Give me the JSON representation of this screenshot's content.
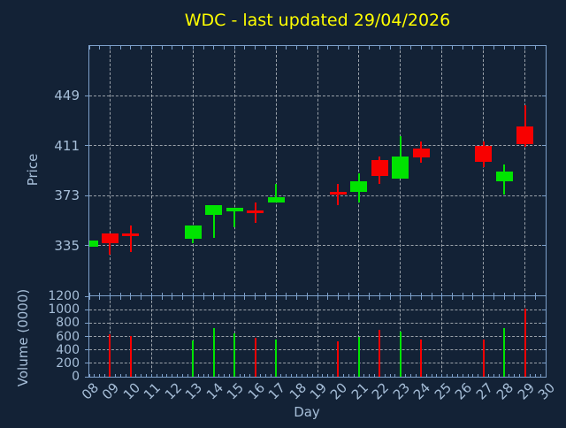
{
  "window": {
    "background": "#132236"
  },
  "colors": {
    "background": "#132236",
    "axis": "#7da0ca",
    "tick_label": "#a6bed8",
    "grid": "#b2b8be",
    "title": "#ffff00",
    "up": "#00e400",
    "down": "#f80000"
  },
  "chart_data": {
    "type": "candlestick",
    "title": "WDC - last updated 29/04/2026",
    "xlabel": "Day",
    "grid": true,
    "x": {
      "min": 8,
      "max": 30,
      "tick_labels": [
        "08",
        "09",
        "10",
        "11",
        "12",
        "13",
        "14",
        "15",
        "16",
        "17",
        "18",
        "19",
        "20",
        "21",
        "22",
        "23",
        "24",
        "25",
        "26",
        "27",
        "28",
        "29",
        "30"
      ],
      "grid_days": [
        9,
        11,
        13,
        15,
        17,
        19,
        21,
        23,
        25,
        27,
        29
      ]
    },
    "price": {
      "ylabel": "Price",
      "ymin": 297,
      "ymax": 487,
      "yticks": [
        335,
        373,
        411,
        449
      ]
    },
    "volume": {
      "ylabel": "Volume (0000)",
      "ymin": 0,
      "ymax": 1200,
      "yticks": [
        0,
        200,
        400,
        600,
        800,
        1000,
        1200
      ]
    },
    "candles": [
      {
        "day": 8,
        "open": 334,
        "high": 339,
        "low": 334,
        "close": 339,
        "dir": "up",
        "volume": null
      },
      {
        "day": 9,
        "open": 344,
        "high": 344,
        "low": 328,
        "close": 337,
        "dir": "down",
        "volume": 635
      },
      {
        "day": 10,
        "open": 344,
        "high": 350,
        "low": 330,
        "close": 343,
        "dir": "down",
        "volume": 610
      },
      {
        "day": 13,
        "open": 340,
        "high": 350,
        "low": 337,
        "close": 350,
        "dir": "up",
        "volume": 535
      },
      {
        "day": 14,
        "open": 358,
        "high": 366,
        "low": 341,
        "close": 366,
        "dir": "up",
        "volume": 730
      },
      {
        "day": 15,
        "open": 361,
        "high": 364,
        "low": 349,
        "close": 364,
        "dir": "up",
        "volume": 640
      },
      {
        "day": 16,
        "open": 362,
        "high": 368,
        "low": 352,
        "close": 361,
        "dir": "down",
        "volume": 580
      },
      {
        "day": 17,
        "open": 368,
        "high": 382,
        "low": 368,
        "close": 372,
        "dir": "up",
        "volume": 560
      },
      {
        "day": 20,
        "open": 376,
        "high": 382,
        "low": 366,
        "close": 375,
        "dir": "down",
        "volume": 530
      },
      {
        "day": 21,
        "open": 376,
        "high": 390,
        "low": 368,
        "close": 384,
        "dir": "up",
        "volume": 600
      },
      {
        "day": 22,
        "open": 400,
        "high": 403,
        "low": 382,
        "close": 388,
        "dir": "down",
        "volume": 705
      },
      {
        "day": 23,
        "open": 386,
        "high": 418,
        "low": 386,
        "close": 403,
        "dir": "up",
        "volume": 675
      },
      {
        "day": 24,
        "open": 409,
        "high": 414,
        "low": 398,
        "close": 402,
        "dir": "down",
        "volume": 560
      },
      {
        "day": 27,
        "open": 411,
        "high": 414,
        "low": 395,
        "close": 399,
        "dir": "down",
        "volume": 560
      },
      {
        "day": 28,
        "open": 384,
        "high": 397,
        "low": 374,
        "close": 391,
        "dir": "up",
        "volume": 730
      },
      {
        "day": 29,
        "open": 426,
        "high": 442,
        "low": 410,
        "close": 412,
        "dir": "down",
        "volume": 1015
      }
    ]
  }
}
